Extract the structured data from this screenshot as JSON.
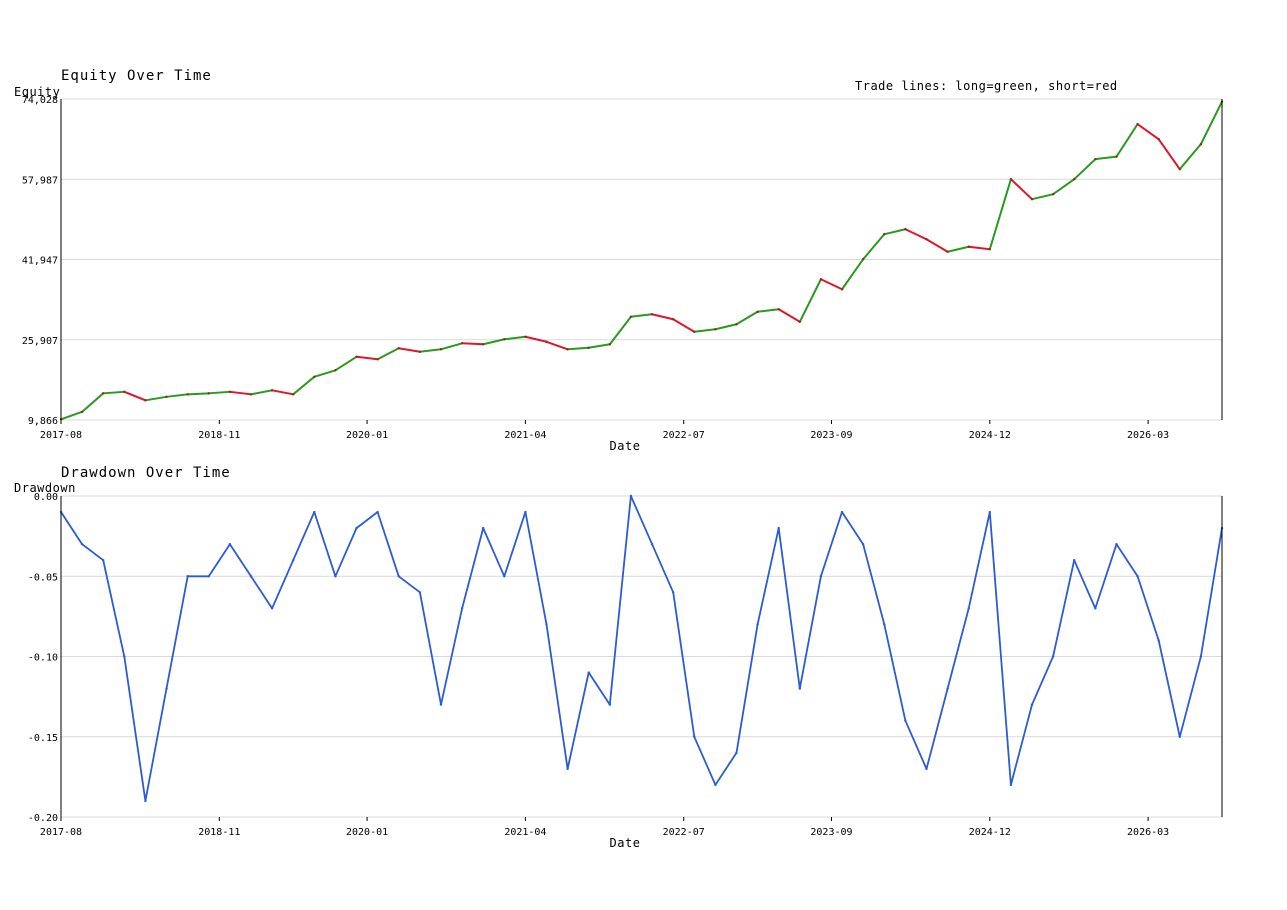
{
  "chart_data": [
    {
      "type": "line",
      "title": "Equity Over Time",
      "xlabel": "Date",
      "ylabel": "Equity",
      "annotation": "Trade lines: long=green, short=red",
      "ylim": [
        9866,
        74028
      ],
      "y_ticks": [
        "9,866",
        "25,907",
        "41,947",
        "57,987",
        "74,028"
      ],
      "x_ticks": [
        "2017-08",
        "2018-11",
        "2020-01",
        "2021-04",
        "2022-07",
        "2023-09",
        "2024-12",
        "2026-03"
      ],
      "x_range": [
        "2017-08",
        "2026-10"
      ],
      "grid": true,
      "colors": {
        "long": "#2a9a1e",
        "short": "#e0162b",
        "base": "#8a2a1a"
      },
      "series": [
        {
          "x": [
            "2017-08",
            "2017-10",
            "2017-12",
            "2018-02",
            "2018-04",
            "2018-06",
            "2018-08",
            "2018-10",
            "2018-12",
            "2019-02",
            "2019-04",
            "2019-06",
            "2019-08",
            "2019-10",
            "2019-12",
            "2020-02",
            "2020-04",
            "2020-06",
            "2020-08",
            "2020-10",
            "2020-12",
            "2021-02",
            "2021-04",
            "2021-06",
            "2021-08",
            "2021-10",
            "2021-12",
            "2022-02",
            "2022-04",
            "2022-06",
            "2022-08",
            "2022-10",
            "2022-12",
            "2023-02",
            "2023-04",
            "2023-06",
            "2023-08",
            "2023-10",
            "2023-12",
            "2024-02",
            "2024-04",
            "2024-06",
            "2024-08",
            "2024-10",
            "2024-12",
            "2025-02",
            "2025-04",
            "2025-06",
            "2025-08",
            "2025-10",
            "2025-12",
            "2026-02",
            "2026-04",
            "2026-06",
            "2026-08",
            "2026-10"
          ],
          "values": [
            10000,
            11500,
            15200,
            15500,
            13800,
            14500,
            15000,
            15200,
            15500,
            15000,
            15800,
            15000,
            18500,
            19800,
            22500,
            22000,
            24200,
            23500,
            24000,
            25200,
            25000,
            26000,
            26500,
            25500,
            24000,
            24300,
            25000,
            30500,
            31000,
            30000,
            27500,
            28000,
            29000,
            31500,
            32000,
            29500,
            38000,
            36000,
            42000,
            47000,
            48000,
            46000,
            43500,
            44500,
            44000,
            58000,
            54000,
            55000,
            58000,
            62000,
            62500,
            69000,
            66000,
            60000,
            65000,
            73500
          ]
        }
      ]
    },
    {
      "type": "line",
      "title": "Drawdown Over Time",
      "xlabel": "Date",
      "ylabel": "Drawdown",
      "ylim": [
        -0.2,
        0.0
      ],
      "y_ticks": [
        "0.00",
        "-0.05",
        "-0.10",
        "-0.15",
        "-0.20"
      ],
      "x_ticks": [
        "2017-08",
        "2018-11",
        "2020-01",
        "2021-04",
        "2022-07",
        "2023-09",
        "2024-12",
        "2026-03"
      ],
      "x_range": [
        "2017-08",
        "2026-10"
      ],
      "grid": true,
      "colors": {
        "line": "#2b5bd6"
      },
      "series": [
        {
          "x": [
            "2017-08",
            "2017-10",
            "2017-12",
            "2018-02",
            "2018-04",
            "2018-06",
            "2018-08",
            "2018-10",
            "2018-12",
            "2019-02",
            "2019-04",
            "2019-06",
            "2019-08",
            "2019-10",
            "2019-12",
            "2020-02",
            "2020-04",
            "2020-06",
            "2020-08",
            "2020-10",
            "2020-12",
            "2021-02",
            "2021-04",
            "2021-06",
            "2021-08",
            "2021-10",
            "2021-12",
            "2022-02",
            "2022-04",
            "2022-06",
            "2022-08",
            "2022-10",
            "2022-12",
            "2023-02",
            "2023-04",
            "2023-06",
            "2023-08",
            "2023-10",
            "2023-12",
            "2024-02",
            "2024-04",
            "2024-06",
            "2024-08",
            "2024-10",
            "2024-12",
            "2025-02",
            "2025-04",
            "2025-06",
            "2025-08",
            "2025-10",
            "2025-12",
            "2026-02",
            "2026-04",
            "2026-06",
            "2026-08",
            "2026-10"
          ],
          "values": [
            -0.01,
            -0.03,
            -0.04,
            -0.1,
            -0.19,
            -0.12,
            -0.05,
            -0.05,
            -0.03,
            -0.05,
            -0.07,
            -0.04,
            -0.01,
            -0.05,
            -0.02,
            -0.01,
            -0.05,
            -0.06,
            -0.13,
            -0.07,
            -0.02,
            -0.05,
            -0.01,
            -0.08,
            -0.17,
            -0.11,
            -0.13,
            0.0,
            -0.03,
            -0.06,
            -0.15,
            -0.18,
            -0.16,
            -0.08,
            -0.02,
            -0.12,
            -0.05,
            -0.01,
            -0.03,
            -0.08,
            -0.14,
            -0.17,
            -0.12,
            -0.07,
            -0.01,
            -0.18,
            -0.13,
            -0.1,
            -0.04,
            -0.07,
            -0.03,
            -0.05,
            -0.09,
            -0.15,
            -0.1,
            -0.02
          ]
        }
      ]
    }
  ]
}
